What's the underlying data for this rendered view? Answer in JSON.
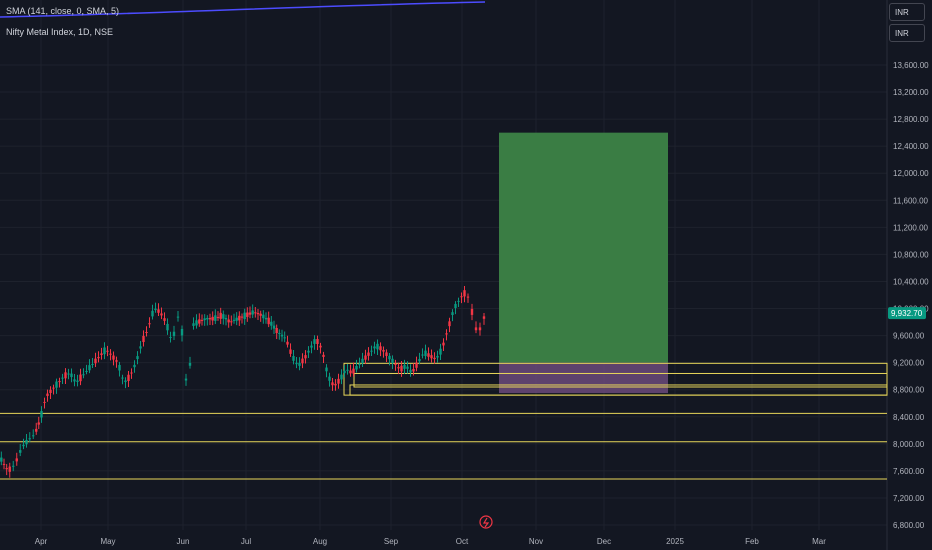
{
  "legend": {
    "sma": "SMA (141, close, 0, SMA, 5)",
    "symbol": "Nifty Metal Index, 1D, NSE"
  },
  "currency_buttons": [
    "INR",
    "INR"
  ],
  "price_label": "9,932.70",
  "colors": {
    "background": "#131722",
    "up": "#089981",
    "down": "#f23645",
    "level_line": "#e8d75a",
    "target_zone": "#3a7d44",
    "stop_zone": "#6b4a7a",
    "sma_line": "#4c4cff",
    "price_tag": "#089981"
  },
  "chart_data": {
    "type": "candlestick",
    "yticks": [
      "13,600.00",
      "13,200.00",
      "12,800.00",
      "12,400.00",
      "12,000.00",
      "11,600.00",
      "11,200.00",
      "10,800.00",
      "10,400.00",
      "10,000.00",
      "9,600.00",
      "9,200.00",
      "8,800.00",
      "8,400.00",
      "8,000.00",
      "7,600.00",
      "7,200.00",
      "6,800.00"
    ],
    "ytick_values": [
      13600,
      13200,
      12800,
      12400,
      12000,
      11600,
      11200,
      10800,
      10400,
      10000,
      9600,
      9200,
      8800,
      8400,
      8000,
      7600,
      7200,
      6800
    ],
    "xticks": [
      "Apr",
      "May",
      "Jun",
      "Jul",
      "Aug",
      "Sep",
      "Oct",
      "Nov",
      "Dec",
      "2025",
      "Feb",
      "Mar"
    ],
    "horizontal_levels": [
      8450,
      8030,
      7480
    ],
    "long_position": {
      "entry": 9200,
      "target": 12600,
      "stop": 8750
    },
    "support_boxes": [
      {
        "top": 9190,
        "bottom": 8720
      },
      {
        "top": 9040,
        "bottom": 8840
      },
      {
        "top": 8870,
        "bottom": 8720
      }
    ],
    "last_price": 9932.7
  }
}
